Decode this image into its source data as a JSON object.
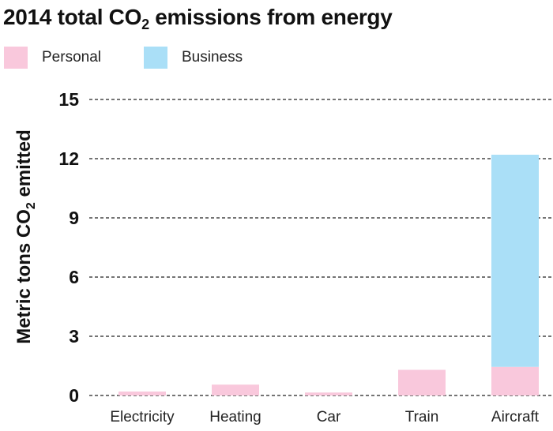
{
  "title": {
    "prefix": "2014 total CO",
    "sub": "2",
    "suffix": " emissions from energy"
  },
  "legend": [
    {
      "label": "Personal",
      "color": "#f9c8dc"
    },
    {
      "label": "Business",
      "color": "#aadff7"
    }
  ],
  "chart_data": {
    "type": "bar",
    "stacked": true,
    "categories": [
      "Electricity",
      "Heating",
      "Car",
      "Train",
      "Aircraft"
    ],
    "series": [
      {
        "name": "Personal",
        "color": "#f9c8dc",
        "values": [
          0.2,
          0.55,
          0.15,
          1.3,
          1.45
        ]
      },
      {
        "name": "Business",
        "color": "#aadff7",
        "values": [
          0,
          0,
          0,
          0,
          10.75
        ]
      }
    ],
    "ylabel_prefix": "Metric tons CO",
    "ylabel_sub": "2",
    "ylabel_suffix": " emitted",
    "ylim": [
      0,
      15
    ],
    "yticks": [
      "0",
      "3",
      "6",
      "9",
      "12",
      "15"
    ],
    "grid": true,
    "legend_position": "top-left"
  }
}
